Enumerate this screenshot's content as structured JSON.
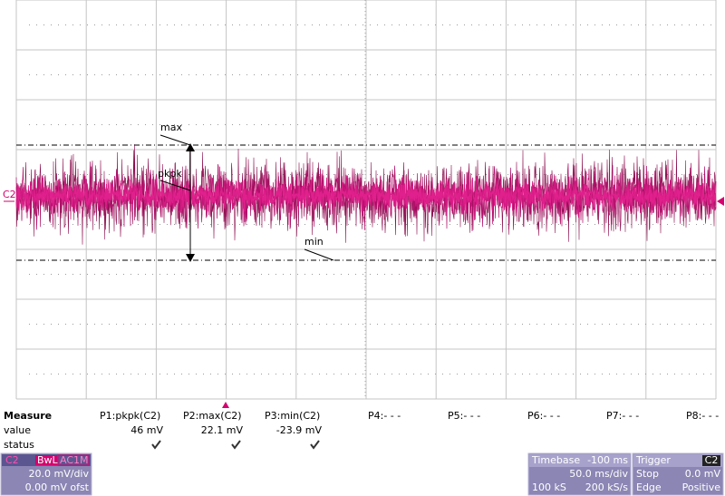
{
  "channel_marker": "C2",
  "cursor_labels": {
    "max": "max",
    "min": "min",
    "pkpk": "pkpk"
  },
  "measure": {
    "title": "Measure",
    "row_labels": [
      "value",
      "status"
    ],
    "params": [
      {
        "name": "P1:pkpk(C2)",
        "value": "46 mV"
      },
      {
        "name": "P2:max(C2)",
        "value": "22.1 mV"
      },
      {
        "name": "P3:min(C2)",
        "value": "-23.9 mV"
      },
      {
        "name": "P4:- - -"
      },
      {
        "name": "P5:- - -"
      },
      {
        "name": "P6:- - -"
      },
      {
        "name": "P7:- - -"
      },
      {
        "name": "P8:- - -"
      }
    ]
  },
  "channel": {
    "name": "C2",
    "badges": [
      "BwL",
      "AC1M"
    ],
    "scale": "20.0 mV/div",
    "offset": "0.00 mV ofst"
  },
  "timebase": {
    "title": "Timebase",
    "delay": "-100 ms",
    "scale": "50.0 ms/div",
    "samples": "100 kS",
    "rate": "200 kS/s"
  },
  "trigger": {
    "title": "Trigger",
    "source": "C2",
    "mode": "Stop",
    "level": "0.0 mV",
    "type": "Edge",
    "slope": "Positive"
  }
}
